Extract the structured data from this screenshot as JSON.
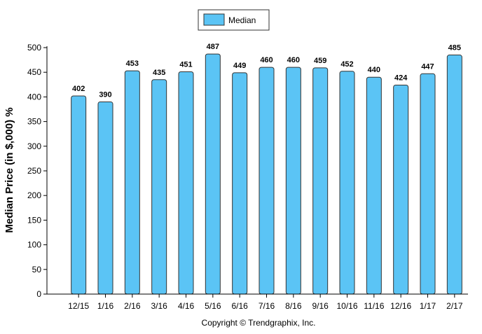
{
  "chart_data": {
    "type": "bar",
    "categories": [
      "12/15",
      "1/16",
      "2/16",
      "3/16",
      "4/16",
      "5/16",
      "6/16",
      "7/16",
      "8/16",
      "9/16",
      "10/16",
      "11/16",
      "12/16",
      "1/17",
      "2/17"
    ],
    "series": [
      {
        "name": "Median",
        "values": [
          402,
          390,
          453,
          435,
          451,
          487,
          449,
          460,
          460,
          459,
          452,
          440,
          424,
          447,
          485
        ]
      }
    ],
    "ylabel": "Median Price (in $,000) %",
    "xlabel": "",
    "ylim": [
      0,
      500
    ],
    "yticks": [
      0,
      50,
      100,
      150,
      200,
      250,
      300,
      350,
      400,
      450,
      500
    ],
    "legend": "top-center",
    "bar_color": "#5bc4f5",
    "bar_stroke": "#333333",
    "footer": "Copyright © Trendgraphix, Inc."
  }
}
